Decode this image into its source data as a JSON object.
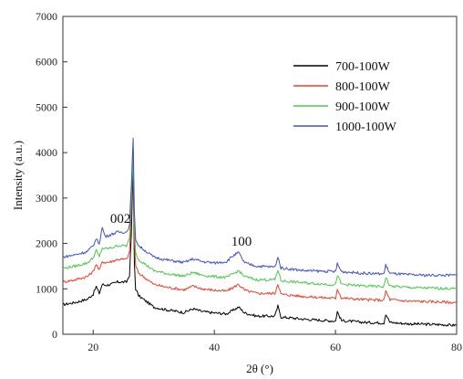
{
  "chart_data": {
    "type": "line",
    "xlabel": "2θ (°)",
    "ylabel": "Intensity (a.u.)",
    "xlim": [
      15,
      80
    ],
    "ylim": [
      0,
      7000
    ],
    "xticks": [
      20,
      40,
      60,
      80
    ],
    "yticks": [
      0,
      1000,
      2000,
      3000,
      4000,
      5000,
      6000,
      7000
    ],
    "grid": false,
    "legend_position": "top-right",
    "annotations": [
      {
        "text": "002",
        "x": 24.5,
        "y": 2450
      },
      {
        "text": "100",
        "x": 44.5,
        "y": 1950
      }
    ],
    "series": [
      {
        "name": "700-100W",
        "color": "#000000",
        "x": [
          15,
          17,
          19,
          20,
          20.5,
          21,
          21.5,
          22,
          23,
          24,
          25,
          25.5,
          26,
          26.3,
          26.6,
          26.8,
          27,
          27.5,
          28,
          30,
          32,
          35,
          36.5,
          38,
          40,
          42,
          43,
          44,
          45,
          47,
          50,
          50.5,
          51,
          55,
          60,
          60.3,
          61,
          65,
          68,
          68.3,
          69,
          72,
          75,
          78,
          79,
          80
        ],
        "values": [
          650,
          700,
          770,
          880,
          1050,
          900,
          1100,
          1080,
          1100,
          1150,
          1150,
          1150,
          1300,
          2200,
          3700,
          1600,
          1000,
          850,
          800,
          600,
          540,
          480,
          560,
          500,
          470,
          450,
          520,
          600,
          470,
          400,
          400,
          620,
          380,
          330,
          290,
          500,
          300,
          260,
          250,
          450,
          260,
          230,
          220,
          210,
          200,
          200
        ]
      },
      {
        "name": "800-100W",
        "color": "#e8412c",
        "x": [
          15,
          17,
          19,
          20,
          20.5,
          21,
          21.5,
          22,
          23,
          24,
          25,
          25.5,
          26,
          26.3,
          26.6,
          26.8,
          27,
          27.5,
          28,
          30,
          32,
          35,
          36.5,
          38,
          40,
          42,
          43,
          44,
          45,
          47,
          50,
          50.5,
          51,
          55,
          60,
          60.3,
          61,
          65,
          68,
          68.3,
          69,
          72,
          75,
          78,
          79,
          80
        ],
        "values": [
          1150,
          1200,
          1270,
          1380,
          1550,
          1400,
          1600,
          1580,
          1600,
          1650,
          1650,
          1650,
          1800,
          2700,
          4100,
          2100,
          1500,
          1350,
          1300,
          1100,
          1040,
          980,
          1060,
          1000,
          970,
          950,
          1020,
          1100,
          970,
          900,
          900,
          1120,
          880,
          830,
          790,
          1000,
          800,
          760,
          750,
          950,
          760,
          730,
          720,
          710,
          700,
          700
        ]
      },
      {
        "name": "900-100W",
        "color": "#4cc84c",
        "x": [
          15,
          17,
          19,
          20,
          20.5,
          21,
          21.5,
          22,
          23,
          24,
          25,
          25.5,
          26,
          26.3,
          26.6,
          26.8,
          27,
          27.5,
          28,
          30,
          32,
          35,
          36.5,
          38,
          40,
          42,
          43,
          44,
          45,
          47,
          50,
          50.5,
          51,
          55,
          60,
          60.3,
          61,
          65,
          68,
          68.3,
          69,
          72,
          75,
          78,
          79,
          80
        ],
        "values": [
          1450,
          1500,
          1570,
          1680,
          1850,
          1700,
          1900,
          1880,
          1900,
          1950,
          1950,
          1950,
          2100,
          3000,
          3900,
          2400,
          1800,
          1650,
          1600,
          1400,
          1340,
          1280,
          1360,
          1300,
          1270,
          1250,
          1320,
          1400,
          1270,
          1200,
          1200,
          1420,
          1180,
          1130,
          1090,
          1300,
          1100,
          1060,
          1050,
          1250,
          1060,
          1030,
          1020,
          1010,
          1000,
          1000
        ]
      },
      {
        "name": "1000-100W",
        "color": "#3f51c8",
        "x": [
          15,
          17,
          19,
          20,
          20.5,
          21,
          21.5,
          22,
          23,
          24,
          25,
          25.5,
          26,
          26.3,
          26.6,
          26.8,
          27,
          27.5,
          28,
          30,
          32,
          35,
          36.5,
          38,
          40,
          42,
          43,
          44,
          45,
          47,
          50,
          50.5,
          51,
          55,
          60,
          60.3,
          61,
          65,
          68,
          68.3,
          69,
          72,
          75,
          78,
          79,
          80
        ],
        "values": [
          1700,
          1750,
          1820,
          1950,
          2100,
          2000,
          2350,
          2150,
          2200,
          2250,
          2250,
          2250,
          2400,
          3300,
          4300,
          2700,
          2100,
          1950,
          1900,
          1700,
          1640,
          1580,
          1660,
          1600,
          1570,
          1600,
          1720,
          1800,
          1570,
          1500,
          1480,
          1700,
          1460,
          1400,
          1380,
          1550,
          1380,
          1340,
          1330,
          1520,
          1340,
          1310,
          1300,
          1300,
          1300,
          1300
        ]
      }
    ]
  }
}
